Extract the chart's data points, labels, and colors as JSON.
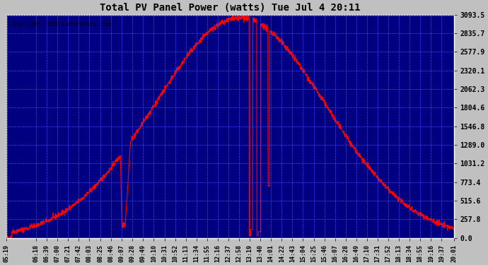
{
  "title": "Total PV Panel Power (watts) Tue Jul 4 20:11",
  "copyright": "Copyright 2008 Cartronics.com",
  "background_color": "#000080",
  "line_color": "#FF0000",
  "grid_color": "#4444FF",
  "y_ticks": [
    0.0,
    257.8,
    515.6,
    773.4,
    1031.2,
    1289.0,
    1546.8,
    1804.6,
    2062.3,
    2320.1,
    2577.9,
    2835.7,
    3093.5
  ],
  "ylim": [
    0,
    3093.5
  ],
  "x_labels": [
    "05:19",
    "06:18",
    "06:39",
    "07:00",
    "07:21",
    "07:42",
    "08:03",
    "08:25",
    "08:46",
    "09:07",
    "09:28",
    "09:49",
    "10:10",
    "10:31",
    "10:52",
    "11:13",
    "11:34",
    "11:55",
    "12:16",
    "12:37",
    "12:58",
    "13:19",
    "13:40",
    "14:01",
    "14:22",
    "14:43",
    "15:04",
    "15:25",
    "15:46",
    "16:07",
    "16:28",
    "16:49",
    "17:10",
    "17:31",
    "17:52",
    "18:13",
    "18:34",
    "18:55",
    "19:16",
    "19:37",
    "20:01"
  ]
}
